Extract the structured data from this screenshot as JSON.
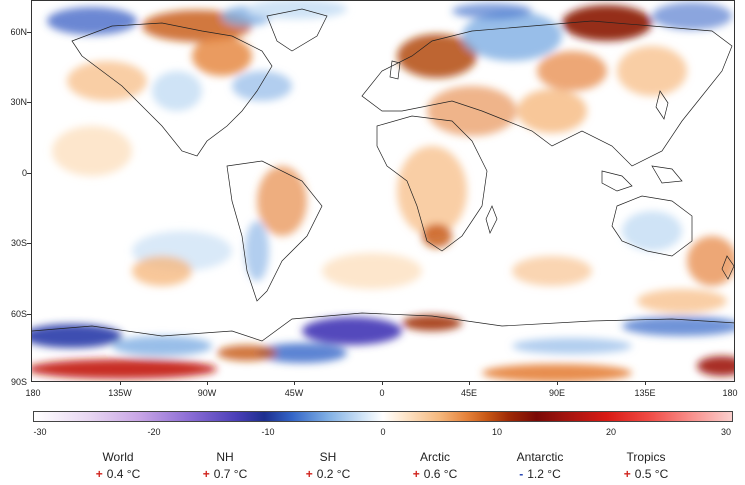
{
  "map": {
    "lat_labels": [
      "60N",
      "30N",
      "0",
      "30S",
      "60S",
      "90S"
    ],
    "lon_labels": [
      "180",
      "135W",
      "90W",
      "45W",
      "0",
      "45E",
      "90E",
      "135E",
      "180"
    ]
  },
  "colorbar": {
    "labels": [
      "-30",
      "-20",
      "-10",
      "0",
      "10",
      "20",
      "30"
    ],
    "min": -30,
    "max": 30,
    "colors": {
      "cold": "#1d2f8f",
      "neutral": "#ffffff",
      "warm": "#c65614",
      "hot": "#d81a14"
    }
  },
  "stats": [
    {
      "name": "World",
      "sign": "+",
      "value": "0.4 °C"
    },
    {
      "name": "NH",
      "sign": "+",
      "value": "0.7 °C"
    },
    {
      "name": "SH",
      "sign": "+",
      "value": "0.2 °C"
    },
    {
      "name": "Arctic",
      "sign": "+",
      "value": "0.6 °C"
    },
    {
      "name": "Antarctic",
      "sign": "-",
      "value": "1.2 °C"
    },
    {
      "name": "Tropics",
      "sign": "+",
      "value": "0.5 °C"
    }
  ]
}
